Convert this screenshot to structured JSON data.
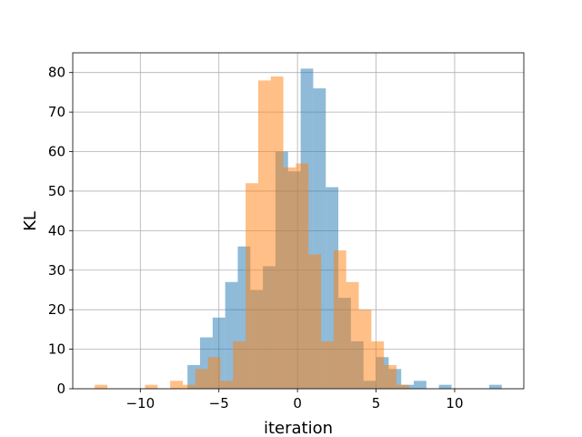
{
  "chart_data": {
    "type": "bar",
    "title": "",
    "xlabel": "iteration",
    "ylabel": "KL",
    "xlim": [
      -14.3,
      14.4
    ],
    "ylim": [
      0,
      85
    ],
    "xticks": [
      -10,
      -5,
      0,
      5,
      10
    ],
    "xtick_labels": [
      "−10",
      "−5",
      "0",
      "5",
      "10"
    ],
    "yticks": [
      0,
      10,
      20,
      30,
      40,
      50,
      60,
      70,
      80
    ],
    "ytick_labels": [
      "0",
      "10",
      "20",
      "30",
      "40",
      "50",
      "60",
      "70",
      "80"
    ],
    "grid": true,
    "legend": "none",
    "series": [
      {
        "color": "#1f77b4",
        "alpha": 0.5,
        "bin_edges": [
          -7.0,
          -6.2,
          -5.4,
          -4.6,
          -3.8,
          -3.0,
          -2.2,
          -1.4,
          -0.6,
          0.2,
          1.0,
          1.8,
          2.6,
          3.4,
          4.2,
          5.0,
          5.8,
          6.6,
          7.4,
          8.2,
          9.0,
          9.8,
          10.6,
          11.4,
          12.2,
          13.0
        ],
        "values": [
          6,
          13,
          18,
          27,
          36,
          25,
          31,
          60,
          55,
          81,
          76,
          51,
          23,
          12,
          2,
          8,
          5,
          1,
          2,
          0,
          1,
          0,
          0,
          0,
          1
        ]
      },
      {
        "color": "#ff7f0e",
        "alpha": 0.5,
        "bin_edges": [
          -12.9,
          -12.1,
          -11.3,
          -10.5,
          -9.7,
          -8.9,
          -8.1,
          -7.3,
          -6.5,
          -5.7,
          -4.9,
          -4.1,
          -3.3,
          -2.5,
          -1.7,
          -0.9,
          -0.1,
          0.7,
          1.5,
          2.3,
          3.1,
          3.9,
          4.7,
          5.5,
          6.3,
          7.1
        ],
        "values": [
          1,
          0,
          0,
          0,
          1,
          0,
          2,
          1,
          5,
          8,
          2,
          12,
          52,
          78,
          79,
          56,
          57,
          34,
          12,
          35,
          27,
          20,
          12,
          6,
          1
        ]
      }
    ]
  }
}
